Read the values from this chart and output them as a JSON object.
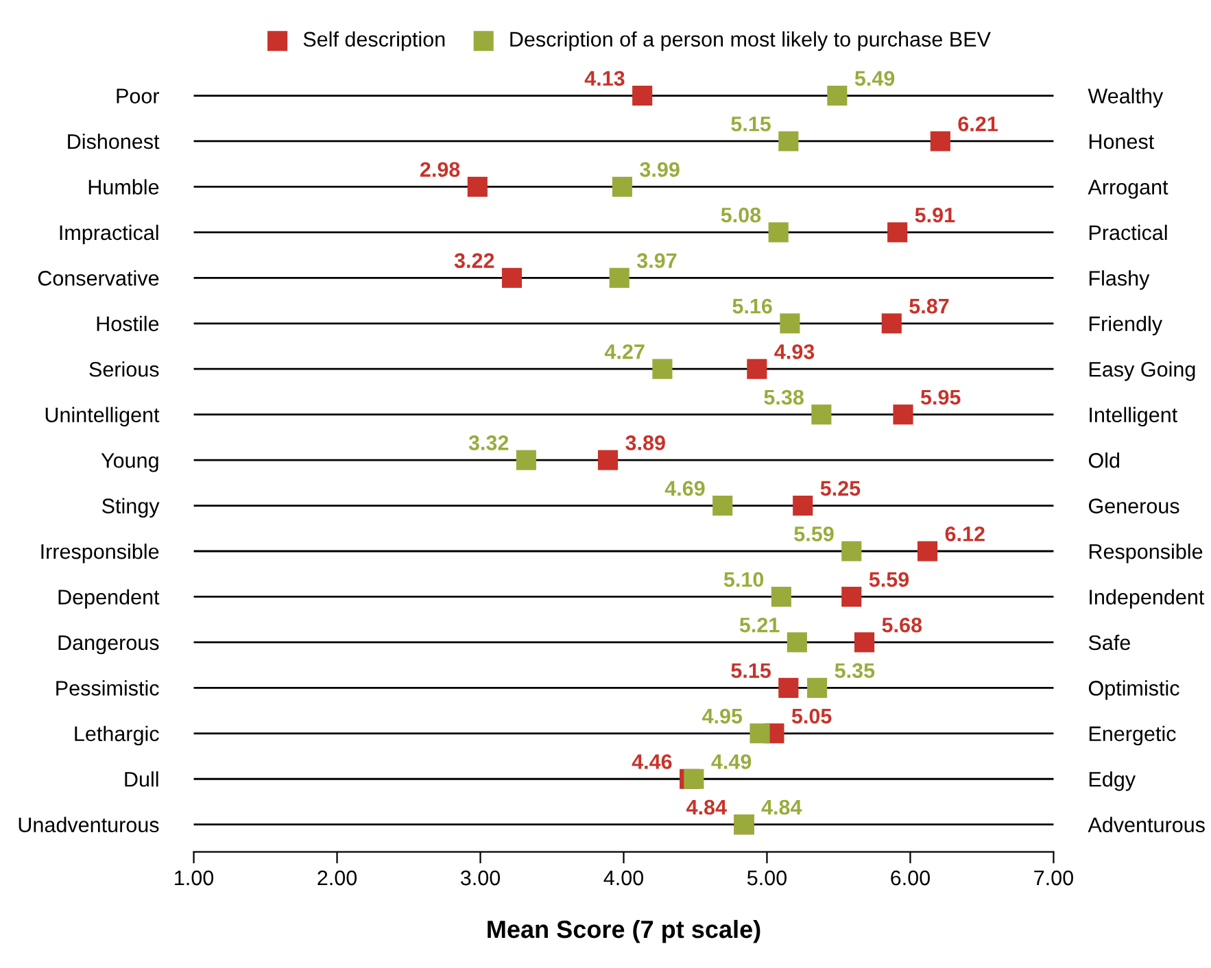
{
  "chart_data": {
    "type": "scatter",
    "orientation": "horizontal",
    "xlabel": "Mean Score (7 pt scale)",
    "categories": [
      "Poor",
      "Dishonest",
      "Humble",
      "Impractical",
      "Conservative",
      "Hostile",
      "Serious",
      "Unintelligent",
      "Young",
      "Stingy",
      "Irresponsible",
      "Dependent",
      "Dangerous",
      "Pessimistic",
      "Lethargic",
      "Dull",
      "Unadventurous"
    ],
    "y2_categories": [
      "Wealthy",
      "Honest",
      "Arrogant",
      "Practical",
      "Flashy",
      "Friendly",
      "Easy Going",
      "Intelligent",
      "Old",
      "Generous",
      "Responsible",
      "Independent",
      "Safe",
      "Optimistic",
      "Energetic",
      "Edgy",
      "Adventurous"
    ],
    "series": [
      {
        "name": "Self description",
        "color": "#c8322a",
        "values": [
          4.13,
          6.21,
          2.98,
          5.91,
          3.22,
          5.87,
          4.93,
          5.95,
          3.89,
          5.25,
          6.12,
          5.59,
          5.68,
          5.15,
          5.05,
          4.46,
          4.84
        ],
        "value_labels": [
          "4.13",
          "6.21",
          "2.98",
          "5.91",
          "3.22",
          "5.87",
          "4.93",
          "5.95",
          "3.89",
          "5.25",
          "6.12",
          "5.59",
          "5.68",
          "5.15",
          "5.05",
          "4.46",
          "4.84"
        ]
      },
      {
        "name": "Description of a person most likely to purchase BEV",
        "color": "#9aab3c",
        "values": [
          5.49,
          5.15,
          3.99,
          5.08,
          3.97,
          5.16,
          4.27,
          5.38,
          3.32,
          4.69,
          5.59,
          5.1,
          5.21,
          5.35,
          4.95,
          4.49,
          4.84
        ],
        "value_labels": [
          "5.49",
          "5.15",
          "3.99",
          "5.08",
          "3.97",
          "5.16",
          "4.27",
          "5.38",
          "3.32",
          "4.69",
          "5.59",
          "5.10",
          "5.21",
          "5.35",
          "4.95",
          "4.49",
          "4.84"
        ]
      }
    ],
    "xlim": [
      1,
      7
    ],
    "xticks": [
      {
        "value": 1,
        "label": "1.00"
      },
      {
        "value": 2,
        "label": "2.00"
      },
      {
        "value": 3,
        "label": "3.00"
      },
      {
        "value": 4,
        "label": "4.00"
      },
      {
        "value": 5,
        "label": "5.00"
      },
      {
        "value": 6,
        "label": "6.00"
      },
      {
        "value": 7,
        "label": "7.00"
      }
    ],
    "grid": "y",
    "legend": "top",
    "marker": "square"
  }
}
